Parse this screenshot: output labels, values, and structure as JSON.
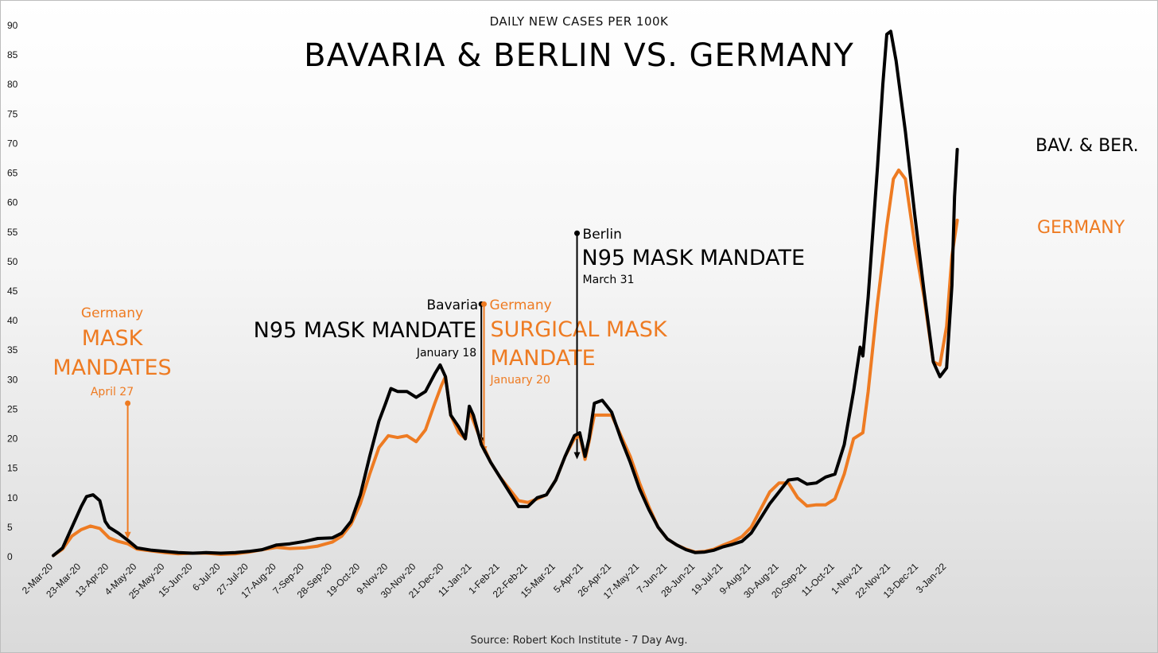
{
  "chart_data": {
    "type": "line",
    "title": "BAVARIA & BERLIN VS. GERMANY",
    "subtitle": "DAILY NEW CASES PER 100K",
    "source": "Source: Robert Koch Institute - 7 Day Avg.",
    "ylim": [
      0,
      90
    ],
    "yticks": [
      0,
      5,
      10,
      15,
      20,
      25,
      30,
      35,
      40,
      45,
      50,
      55,
      60,
      65,
      70,
      75,
      80,
      85,
      90
    ],
    "grid": false,
    "x_tick_labels": [
      "2-Mar-20",
      "23-Mar-20",
      "13-Apr-20",
      "4-May-20",
      "25-May-20",
      "15-Jun-20",
      "6-Jul-20",
      "27-Jul-20",
      "17-Aug-20",
      "7-Sep-20",
      "28-Sep-20",
      "19-Oct-20",
      "9-Nov-20",
      "30-Nov-20",
      "21-Dec-20",
      "11-Jan-21",
      "1-Feb-21",
      "22-Feb-21",
      "15-Mar-21",
      "5-Apr-21",
      "26-Apr-21",
      "17-May-21",
      "7-Jun-21",
      "28-Jun-21",
      "19-Jul-21",
      "9-Aug-21",
      "30-Aug-21",
      "20-Sep-21",
      "11-Oct-21",
      "1-Nov-21",
      "22-Nov-21",
      "13-Dec-21",
      "3-Jan-22"
    ],
    "series": [
      {
        "name": "BAV. & BER.",
        "color": "#000000",
        "points": [
          [
            "2-Mar-20",
            0.2
          ],
          [
            "9-Mar-20",
            1.5
          ],
          [
            "16-Mar-20",
            5
          ],
          [
            "23-Mar-20",
            8.5
          ],
          [
            "27-Mar-20",
            10.2
          ],
          [
            "1-Apr-20",
            10.5
          ],
          [
            "6-Apr-20",
            9.5
          ],
          [
            "10-Apr-20",
            6
          ],
          [
            "13-Apr-20",
            5
          ],
          [
            "20-Apr-20",
            4
          ],
          [
            "27-Apr-20",
            2.8
          ],
          [
            "4-May-20",
            1.5
          ],
          [
            "15-May-20",
            1.1
          ],
          [
            "25-May-20",
            0.9
          ],
          [
            "4-Jun-20",
            0.7
          ],
          [
            "15-Jun-20",
            0.6
          ],
          [
            "25-Jun-20",
            0.7
          ],
          [
            "6-Jul-20",
            0.6
          ],
          [
            "17-Jul-20",
            0.7
          ],
          [
            "27-Jul-20",
            0.9
          ],
          [
            "6-Aug-20",
            1.2
          ],
          [
            "17-Aug-20",
            2
          ],
          [
            "27-Aug-20",
            2.2
          ],
          [
            "7-Sep-20",
            2.6
          ],
          [
            "17-Sep-20",
            3.1
          ],
          [
            "28-Sep-20",
            3.2
          ],
          [
            "5-Oct-20",
            4
          ],
          [
            "12-Oct-20",
            6
          ],
          [
            "19-Oct-20",
            10.5
          ],
          [
            "26-Oct-20",
            17
          ],
          [
            "2-Nov-20",
            23
          ],
          [
            "7-Nov-20",
            26
          ],
          [
            "11-Nov-20",
            28.5
          ],
          [
            "16-Nov-20",
            28
          ],
          [
            "23-Nov-20",
            28
          ],
          [
            "30-Nov-20",
            27
          ],
          [
            "7-Dec-20",
            28
          ],
          [
            "14-Dec-20",
            31
          ],
          [
            "18-Dec-20",
            32.5
          ],
          [
            "22-Dec-20",
            30.5
          ],
          [
            "26-Dec-20",
            24
          ],
          [
            "1-Jan-21",
            22
          ],
          [
            "6-Jan-21",
            20
          ],
          [
            "9-Jan-21",
            25.5
          ],
          [
            "12-Jan-21",
            24
          ],
          [
            "18-Jan-21",
            19
          ],
          [
            "25-Jan-21",
            16
          ],
          [
            "1-Feb-21",
            13.5
          ],
          [
            "8-Feb-21",
            11
          ],
          [
            "15-Feb-21",
            8.5
          ],
          [
            "22-Feb-21",
            8.5
          ],
          [
            "1-Mar-21",
            10
          ],
          [
            "8-Mar-21",
            10.5
          ],
          [
            "15-Mar-21",
            13
          ],
          [
            "22-Mar-21",
            17
          ],
          [
            "29-Mar-21",
            20.5
          ],
          [
            "2-Apr-21",
            21
          ],
          [
            "6-Apr-21",
            17
          ],
          [
            "9-Apr-21",
            20
          ],
          [
            "13-Apr-21",
            26
          ],
          [
            "19-Apr-21",
            26.5
          ],
          [
            "26-Apr-21",
            24.5
          ],
          [
            "3-May-21",
            20
          ],
          [
            "10-May-21",
            16
          ],
          [
            "17-May-21",
            11.5
          ],
          [
            "24-May-21",
            8
          ],
          [
            "31-May-21",
            5
          ],
          [
            "7-Jun-21",
            3
          ],
          [
            "14-Jun-21",
            2
          ],
          [
            "21-Jun-21",
            1.2
          ],
          [
            "28-Jun-21",
            0.7
          ],
          [
            "5-Jul-21",
            0.8
          ],
          [
            "12-Jul-21",
            1.1
          ],
          [
            "19-Jul-21",
            1.7
          ],
          [
            "26-Jul-21",
            2.1
          ],
          [
            "2-Aug-21",
            2.6
          ],
          [
            "9-Aug-21",
            4
          ],
          [
            "16-Aug-21",
            6.5
          ],
          [
            "23-Aug-21",
            9
          ],
          [
            "30-Aug-21",
            11
          ],
          [
            "6-Sep-21",
            13
          ],
          [
            "13-Sep-21",
            13.2
          ],
          [
            "20-Sep-21",
            12.3
          ],
          [
            "27-Sep-21",
            12.5
          ],
          [
            "4-Oct-21",
            13.5
          ],
          [
            "11-Oct-21",
            14
          ],
          [
            "18-Oct-21",
            19
          ],
          [
            "25-Oct-21",
            28
          ],
          [
            "30-Oct-21",
            35.5
          ],
          [
            "1-Nov-21",
            34
          ],
          [
            "5-Nov-21",
            44
          ],
          [
            "12-Nov-21",
            66
          ],
          [
            "16-Nov-21",
            80
          ],
          [
            "19-Nov-21",
            88.5
          ],
          [
            "22-Nov-21",
            89
          ],
          [
            "26-Nov-21",
            84
          ],
          [
            "3-Dec-21",
            72
          ],
          [
            "10-Dec-21",
            58
          ],
          [
            "17-Dec-21",
            45
          ],
          [
            "24-Dec-21",
            33
          ],
          [
            "29-Dec-21",
            30.5
          ],
          [
            "3-Jan-22",
            32
          ],
          [
            "7-Jan-22",
            46
          ],
          [
            "9-Jan-22",
            61
          ],
          [
            "11-Jan-22",
            69
          ]
        ]
      },
      {
        "name": "GERMANY",
        "color": "#ee7b22",
        "points": [
          [
            "2-Mar-20",
            0.2
          ],
          [
            "9-Mar-20",
            1.3
          ],
          [
            "16-Mar-20",
            3.5
          ],
          [
            "23-Mar-20",
            4.6
          ],
          [
            "30-Mar-20",
            5.2
          ],
          [
            "6-Apr-20",
            4.8
          ],
          [
            "13-Apr-20",
            3.2
          ],
          [
            "20-Apr-20",
            2.6
          ],
          [
            "27-Apr-20",
            2.2
          ],
          [
            "4-May-20",
            1.3
          ],
          [
            "15-May-20",
            1
          ],
          [
            "25-May-20",
            0.7
          ],
          [
            "4-Jun-20",
            0.5
          ],
          [
            "15-Jun-20",
            0.6
          ],
          [
            "25-Jun-20",
            0.6
          ],
          [
            "6-Jul-20",
            0.4
          ],
          [
            "17-Jul-20",
            0.5
          ],
          [
            "27-Jul-20",
            0.8
          ],
          [
            "6-Aug-20",
            1.2
          ],
          [
            "17-Aug-20",
            1.6
          ],
          [
            "27-Aug-20",
            1.4
          ],
          [
            "7-Sep-20",
            1.5
          ],
          [
            "17-Sep-20",
            1.8
          ],
          [
            "28-Sep-20",
            2.5
          ],
          [
            "5-Oct-20",
            3.5
          ],
          [
            "12-Oct-20",
            5.5
          ],
          [
            "19-Oct-20",
            9
          ],
          [
            "26-Oct-20",
            14
          ],
          [
            "2-Nov-20",
            18.5
          ],
          [
            "9-Nov-20",
            20.5
          ],
          [
            "16-Nov-20",
            20.2
          ],
          [
            "23-Nov-20",
            20.5
          ],
          [
            "30-Nov-20",
            19.5
          ],
          [
            "7-Dec-20",
            21.5
          ],
          [
            "14-Dec-20",
            26
          ],
          [
            "19-Dec-20",
            29
          ],
          [
            "22-Dec-20",
            30.5
          ],
          [
            "26-Dec-20",
            24
          ],
          [
            "1-Jan-21",
            21
          ],
          [
            "6-Jan-21",
            20
          ],
          [
            "9-Jan-21",
            24.8
          ],
          [
            "12-Jan-21",
            23
          ],
          [
            "18-Jan-21",
            19.5
          ],
          [
            "25-Jan-21",
            16
          ],
          [
            "1-Feb-21",
            13.5
          ],
          [
            "8-Feb-21",
            11.5
          ],
          [
            "15-Feb-21",
            9.5
          ],
          [
            "22-Feb-21",
            9.2
          ],
          [
            "1-Mar-21",
            9.8
          ],
          [
            "8-Mar-21",
            10.5
          ],
          [
            "15-Mar-21",
            13
          ],
          [
            "22-Mar-21",
            17
          ],
          [
            "29-Mar-21",
            20
          ],
          [
            "2-Apr-21",
            20.5
          ],
          [
            "6-Apr-21",
            16.5
          ],
          [
            "9-Apr-21",
            19.5
          ],
          [
            "13-Apr-21",
            24
          ],
          [
            "19-Apr-21",
            24
          ],
          [
            "26-Apr-21",
            24
          ],
          [
            "3-May-21",
            20.5
          ],
          [
            "10-May-21",
            17
          ],
          [
            "17-May-21",
            12.5
          ],
          [
            "24-May-21",
            8.5
          ],
          [
            "31-May-21",
            5
          ],
          [
            "7-Jun-21",
            3
          ],
          [
            "14-Jun-21",
            2
          ],
          [
            "21-Jun-21",
            1.3
          ],
          [
            "28-Jun-21",
            0.8
          ],
          [
            "5-Jul-21",
            0.9
          ],
          [
            "12-Jul-21",
            1.3
          ],
          [
            "19-Jul-21",
            2
          ],
          [
            "26-Jul-21",
            2.6
          ],
          [
            "2-Aug-21",
            3.4
          ],
          [
            "9-Aug-21",
            5
          ],
          [
            "16-Aug-21",
            8
          ],
          [
            "23-Aug-21",
            11
          ],
          [
            "30-Aug-21",
            12.5
          ],
          [
            "6-Sep-21",
            12.5
          ],
          [
            "13-Sep-21",
            10
          ],
          [
            "20-Sep-21",
            8.6
          ],
          [
            "27-Sep-21",
            8.8
          ],
          [
            "4-Oct-21",
            8.8
          ],
          [
            "11-Oct-21",
            9.8
          ],
          [
            "18-Oct-21",
            14
          ],
          [
            "25-Oct-21",
            20
          ],
          [
            "1-Nov-21",
            21
          ],
          [
            "5-Nov-21",
            28
          ],
          [
            "12-Nov-21",
            43
          ],
          [
            "19-Nov-21",
            56
          ],
          [
            "24-Nov-21",
            64
          ],
          [
            "28-Nov-21",
            65.5
          ],
          [
            "3-Dec-21",
            64
          ],
          [
            "10-Dec-21",
            53
          ],
          [
            "17-Dec-21",
            44
          ],
          [
            "24-Dec-21",
            33
          ],
          [
            "29-Dec-21",
            32.5
          ],
          [
            "3-Jan-22",
            39
          ],
          [
            "7-Jan-22",
            51
          ],
          [
            "11-Jan-22",
            57
          ]
        ]
      }
    ],
    "series_labels": [
      "BAV. & BER.",
      "GERMANY"
    ],
    "annotations": [
      {
        "id": "germany-apr",
        "color": "#ee7b22",
        "lines": [
          "Germany",
          "MASK",
          "MANDATES",
          "April 27"
        ],
        "date": "27-Apr-20",
        "y_from": 26,
        "y_to": 3
      },
      {
        "id": "bavaria-jan",
        "color": "#000000",
        "lines": [
          "Bavaria",
          "N95 MASK MANDATE",
          "January 18"
        ],
        "date": "18-Jan-21",
        "y_from": 42.8,
        "y_to": 19
      },
      {
        "id": "germany-jan",
        "color": "#ee7b22",
        "lines": [
          "Germany",
          "SURGICAL MASK",
          "MANDATE",
          "January 20"
        ],
        "date": "20-Jan-21",
        "y_from": 42.8,
        "y_to": 17.5
      },
      {
        "id": "berlin-mar",
        "color": "#000000",
        "lines": [
          "Berlin",
          "N95 MASK MANDATE",
          "March 31"
        ],
        "date": "31-Mar-21",
        "y_from": 54.8,
        "y_to": 16.5
      }
    ]
  }
}
